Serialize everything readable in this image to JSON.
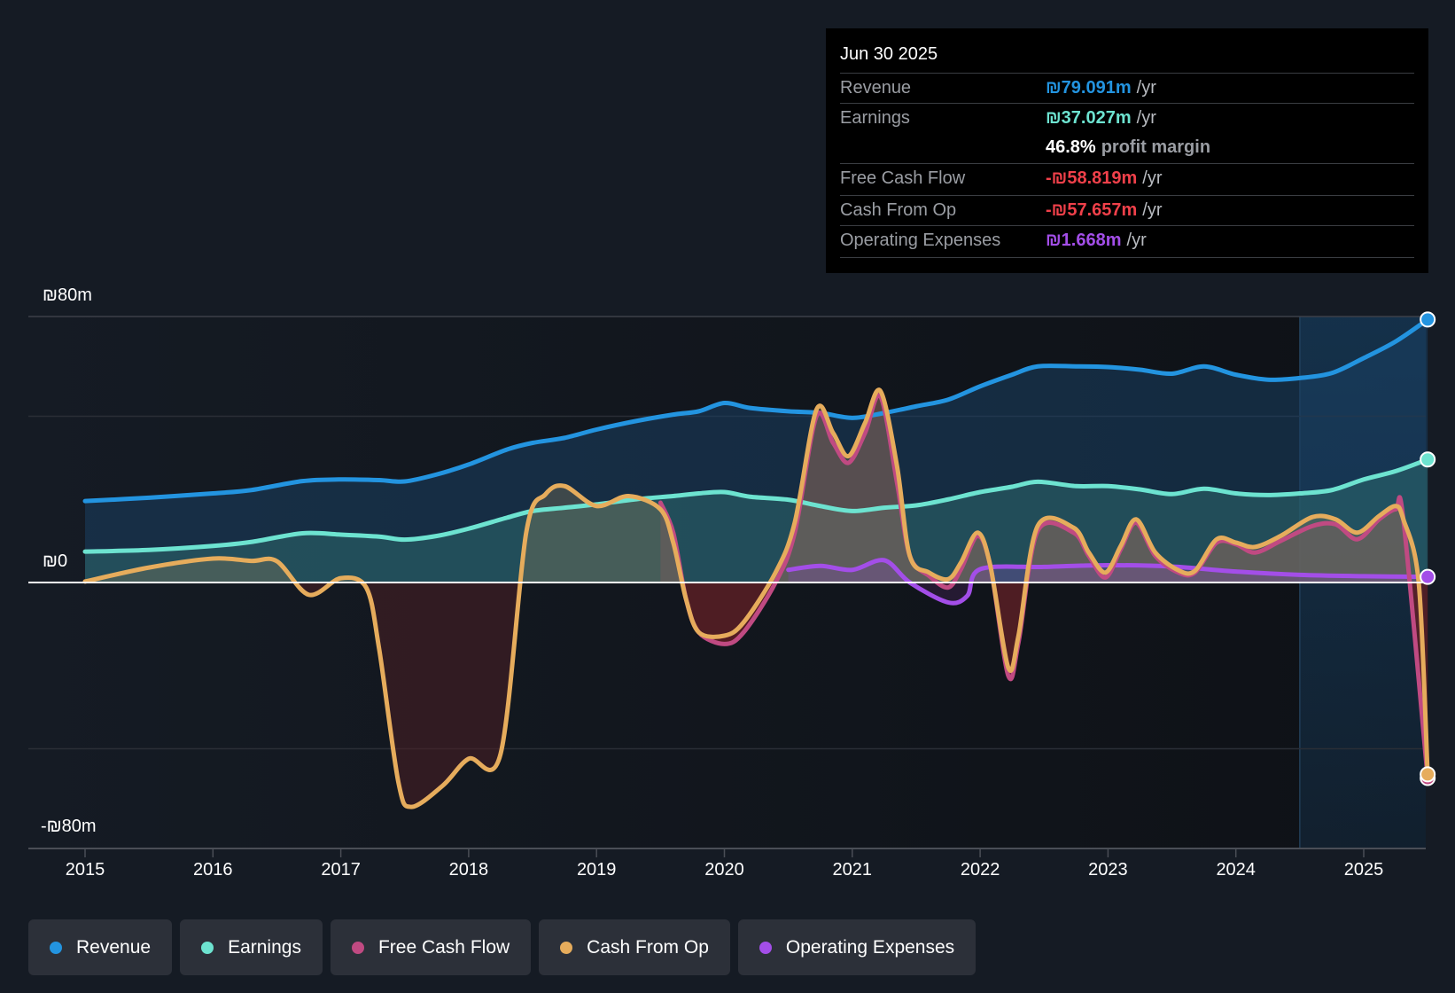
{
  "tooltip": {
    "date": "Jun 30 2025",
    "rows": [
      {
        "label": "Revenue",
        "value": "₪79.091m",
        "unit": "/yr",
        "color": "#2394e0"
      },
      {
        "label": "Earnings",
        "value": "₪37.027m",
        "unit": "/yr",
        "color": "#6de3d0"
      },
      {
        "label": "",
        "value": "46.8%",
        "unit": "profit margin",
        "color": "#ffffff"
      },
      {
        "label": "Free Cash Flow",
        "value": "-₪58.819m",
        "unit": "/yr",
        "color": "#f0404a"
      },
      {
        "label": "Cash From Op",
        "value": "-₪57.657m",
        "unit": "/yr",
        "color": "#f0404a"
      },
      {
        "label": "Operating Expenses",
        "value": "₪1.668m",
        "unit": "/yr",
        "color": "#a34ee8"
      }
    ]
  },
  "legend": [
    {
      "label": "Revenue",
      "color": "#2394e0"
    },
    {
      "label": "Earnings",
      "color": "#6de3d0"
    },
    {
      "label": "Free Cash Flow",
      "color": "#c04a82"
    },
    {
      "label": "Cash From Op",
      "color": "#e6ac5c"
    },
    {
      "label": "Operating Expenses",
      "color": "#a34ee8"
    }
  ],
  "chart_data": {
    "type": "area",
    "title": "",
    "xlabel": "",
    "ylabel": "",
    "currency": "ILS",
    "ylim": [
      -80,
      80
    ],
    "ytick_labels": [
      "₪80m",
      "₪0",
      "-₪80m"
    ],
    "gridlines": [
      80,
      50,
      0,
      -50,
      -80
    ],
    "xlim": [
      2015.0,
      2025.5
    ],
    "xtick_labels": [
      "2015",
      "2016",
      "2017",
      "2018",
      "2019",
      "2020",
      "2021",
      "2022",
      "2023",
      "2024",
      "2025"
    ],
    "xtick_values": [
      2015,
      2016,
      2017,
      2018,
      2019,
      2020,
      2021,
      2022,
      2023,
      2024,
      2025
    ],
    "highlight_region": [
      2024.5,
      2025.5
    ],
    "legend_position": "bottom",
    "series": [
      {
        "name": "Revenue",
        "color": "#2394e0",
        "points": [
          [
            2015.0,
            24.5
          ],
          [
            2015.5,
            25.5
          ],
          [
            2016.0,
            26.8
          ],
          [
            2016.3,
            27.8
          ],
          [
            2016.7,
            30.5
          ],
          [
            2017.0,
            31
          ],
          [
            2017.3,
            30.8
          ],
          [
            2017.5,
            30.4
          ],
          [
            2017.75,
            32.5
          ],
          [
            2018.0,
            35.5
          ],
          [
            2018.3,
            40
          ],
          [
            2018.5,
            42
          ],
          [
            2018.75,
            43.5
          ],
          [
            2019.0,
            46
          ],
          [
            2019.3,
            48.5
          ],
          [
            2019.6,
            50.5
          ],
          [
            2019.8,
            51.5
          ],
          [
            2020.0,
            54
          ],
          [
            2020.2,
            52.5
          ],
          [
            2020.5,
            51.5
          ],
          [
            2020.75,
            51
          ],
          [
            2021.0,
            49.5
          ],
          [
            2021.25,
            51
          ],
          [
            2021.5,
            53
          ],
          [
            2021.75,
            55
          ],
          [
            2022.0,
            59
          ],
          [
            2022.25,
            62.5
          ],
          [
            2022.45,
            65
          ],
          [
            2022.75,
            65
          ],
          [
            2023.0,
            64.8
          ],
          [
            2023.25,
            64
          ],
          [
            2023.5,
            62.8
          ],
          [
            2023.75,
            65
          ],
          [
            2024.0,
            62.5
          ],
          [
            2024.25,
            61
          ],
          [
            2024.5,
            61.5
          ],
          [
            2024.75,
            63
          ],
          [
            2025.0,
            67.5
          ],
          [
            2025.25,
            72.5
          ],
          [
            2025.5,
            79.1
          ]
        ]
      },
      {
        "name": "Earnings",
        "color": "#6de3d0",
        "points": [
          [
            2015.0,
            9.3
          ],
          [
            2015.5,
            9.8
          ],
          [
            2016.0,
            11
          ],
          [
            2016.3,
            12.2
          ],
          [
            2016.7,
            14.8
          ],
          [
            2017.0,
            14.4
          ],
          [
            2017.3,
            13.8
          ],
          [
            2017.5,
            12.9
          ],
          [
            2017.75,
            14
          ],
          [
            2018.0,
            16.2
          ],
          [
            2018.3,
            19.5
          ],
          [
            2018.5,
            21.5
          ],
          [
            2018.75,
            22.5
          ],
          [
            2019.0,
            23.5
          ],
          [
            2019.3,
            25
          ],
          [
            2019.6,
            26
          ],
          [
            2019.8,
            26.8
          ],
          [
            2020.0,
            27.2
          ],
          [
            2020.2,
            25.8
          ],
          [
            2020.5,
            24.9
          ],
          [
            2020.75,
            23
          ],
          [
            2021.0,
            21.5
          ],
          [
            2021.25,
            22.5
          ],
          [
            2021.5,
            23.2
          ],
          [
            2021.75,
            25
          ],
          [
            2022.0,
            27.2
          ],
          [
            2022.25,
            28.8
          ],
          [
            2022.45,
            30.3
          ],
          [
            2022.75,
            29
          ],
          [
            2023.0,
            29
          ],
          [
            2023.25,
            28
          ],
          [
            2023.5,
            26.6
          ],
          [
            2023.75,
            28.2
          ],
          [
            2024.0,
            26.8
          ],
          [
            2024.25,
            26.3
          ],
          [
            2024.5,
            26.8
          ],
          [
            2024.75,
            27.8
          ],
          [
            2025.0,
            31
          ],
          [
            2025.25,
            33.5
          ],
          [
            2025.5,
            37.0
          ]
        ]
      },
      {
        "name": "Free Cash Flow",
        "color": "#c04a82",
        "points": [
          [
            2019.5,
            24
          ],
          [
            2019.6,
            15
          ],
          [
            2019.7,
            -5
          ],
          [
            2019.8,
            -15
          ],
          [
            2020.0,
            -18.5
          ],
          [
            2020.15,
            -15
          ],
          [
            2020.4,
            0
          ],
          [
            2020.55,
            15
          ],
          [
            2020.72,
            50
          ],
          [
            2020.85,
            42
          ],
          [
            2020.97,
            36
          ],
          [
            2021.1,
            45
          ],
          [
            2021.22,
            56
          ],
          [
            2021.35,
            30
          ],
          [
            2021.45,
            8
          ],
          [
            2021.6,
            2
          ],
          [
            2021.75,
            -1.5
          ],
          [
            2021.85,
            4
          ],
          [
            2021.98,
            14
          ],
          [
            2022.08,
            5
          ],
          [
            2022.22,
            -28
          ],
          [
            2022.3,
            -18
          ],
          [
            2022.45,
            15.5
          ],
          [
            2022.73,
            15
          ],
          [
            2022.85,
            8
          ],
          [
            2022.98,
            1.5
          ],
          [
            2023.1,
            10
          ],
          [
            2023.22,
            18
          ],
          [
            2023.37,
            8
          ],
          [
            2023.55,
            3
          ],
          [
            2023.68,
            3
          ],
          [
            2023.85,
            12
          ],
          [
            2024.0,
            11.5
          ],
          [
            2024.15,
            9
          ],
          [
            2024.35,
            12.5
          ],
          [
            2024.6,
            17
          ],
          [
            2024.78,
            17.5
          ],
          [
            2024.95,
            13
          ],
          [
            2025.12,
            19
          ],
          [
            2025.25,
            22
          ],
          [
            2025.31,
            19
          ],
          [
            2025.5,
            -58.8
          ]
        ]
      },
      {
        "name": "Cash From Op",
        "color": "#e6ac5c",
        "points": [
          [
            2015.0,
            0.3
          ],
          [
            2015.5,
            4.5
          ],
          [
            2016.0,
            7.2
          ],
          [
            2016.3,
            6.5
          ],
          [
            2016.5,
            6.4
          ],
          [
            2016.75,
            -3.7
          ],
          [
            2017.0,
            1.3
          ],
          [
            2017.2,
            -1.6
          ],
          [
            2017.3,
            -20
          ],
          [
            2017.45,
            -60
          ],
          [
            2017.55,
            -67.5
          ],
          [
            2017.8,
            -61
          ],
          [
            2018.0,
            -53
          ],
          [
            2018.25,
            -51.5
          ],
          [
            2018.45,
            15
          ],
          [
            2018.6,
            26.5
          ],
          [
            2018.75,
            29
          ],
          [
            2019.0,
            23
          ],
          [
            2019.25,
            26
          ],
          [
            2019.5,
            22
          ],
          [
            2019.6,
            12
          ],
          [
            2019.7,
            -5
          ],
          [
            2019.8,
            -15
          ],
          [
            2020.0,
            -16
          ],
          [
            2020.15,
            -12
          ],
          [
            2020.4,
            3
          ],
          [
            2020.55,
            18
          ],
          [
            2020.72,
            52
          ],
          [
            2020.85,
            45
          ],
          [
            2020.97,
            38
          ],
          [
            2021.1,
            48
          ],
          [
            2021.22,
            57.6
          ],
          [
            2021.35,
            35
          ],
          [
            2021.45,
            8
          ],
          [
            2021.6,
            3
          ],
          [
            2021.75,
            1
          ],
          [
            2021.85,
            6
          ],
          [
            2021.98,
            15
          ],
          [
            2022.08,
            5
          ],
          [
            2022.22,
            -25.6
          ],
          [
            2022.3,
            -16
          ],
          [
            2022.45,
            17
          ],
          [
            2022.73,
            16.5
          ],
          [
            2022.85,
            9
          ],
          [
            2022.98,
            3
          ],
          [
            2023.1,
            11
          ],
          [
            2023.22,
            19
          ],
          [
            2023.37,
            9
          ],
          [
            2023.55,
            3.7
          ],
          [
            2023.68,
            3.5
          ],
          [
            2023.85,
            13
          ],
          [
            2024.0,
            12
          ],
          [
            2024.15,
            10.7
          ],
          [
            2024.35,
            14
          ],
          [
            2024.6,
            19.7
          ],
          [
            2024.78,
            19
          ],
          [
            2024.95,
            15
          ],
          [
            2025.12,
            20
          ],
          [
            2025.25,
            23
          ],
          [
            2025.31,
            19
          ],
          [
            2025.43,
            0
          ],
          [
            2025.5,
            -57.7
          ]
        ]
      },
      {
        "name": "Operating Expenses",
        "color": "#a34ee8",
        "points": [
          [
            2020.5,
            3.8
          ],
          [
            2020.75,
            5
          ],
          [
            2021.0,
            3.8
          ],
          [
            2021.25,
            6.7
          ],
          [
            2021.45,
            0
          ],
          [
            2021.75,
            -6
          ],
          [
            2021.9,
            -4
          ],
          [
            2022.0,
            4
          ],
          [
            2022.5,
            4.7
          ],
          [
            2023.0,
            5.2
          ],
          [
            2023.5,
            4.8
          ],
          [
            2024.0,
            3.3
          ],
          [
            2024.5,
            2.3
          ],
          [
            2025.0,
            1.9
          ],
          [
            2025.5,
            1.7
          ]
        ]
      }
    ]
  }
}
